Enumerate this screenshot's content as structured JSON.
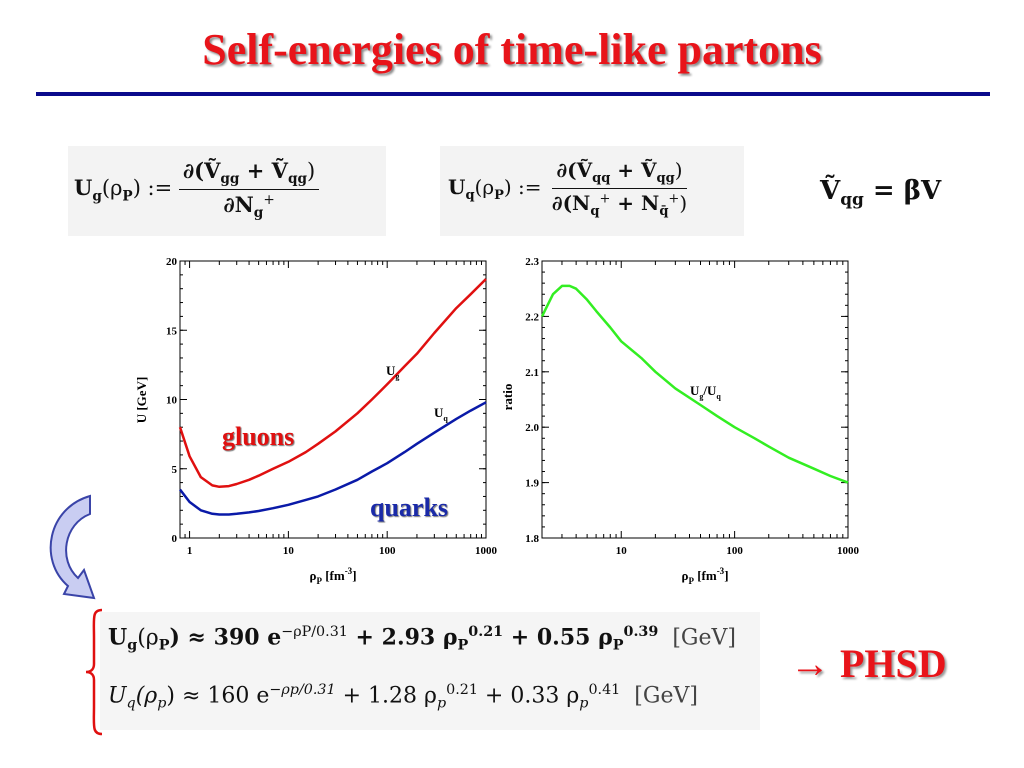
{
  "slide": {
    "title": "Self-energies of time-like partons",
    "result_label": "→ PHSD"
  },
  "equations": {
    "ug_def_lhs": "U",
    "ug_def_lhs_sub": "g",
    "ug_def_arg": "(ρ",
    "ug_def_arg_sub": "P",
    "ug_def_assign": ") :=",
    "ug_def_num": "∂(Ṽ",
    "ug_def_num_sub1": "gg",
    "ug_def_num_mid": " + Ṽ",
    "ug_def_num_sub2": "qg",
    "ug_def_num_end": ")",
    "ug_def_den": "∂N",
    "ug_def_den_sub": "g",
    "ug_def_den_sup": "+",
    "uq_def_lhs": "U",
    "uq_def_lhs_sub": "q",
    "uq_def_arg": "(ρ",
    "uq_def_arg_sub": "P",
    "uq_def_assign": ") :=",
    "uq_def_num": "∂(Ṽ",
    "uq_def_num_sub1": "qq",
    "uq_def_num_mid": " + Ṽ",
    "uq_def_num_sub2": "qg",
    "uq_def_num_end": ")",
    "uq_def_den": "∂(N",
    "uq_def_den_sub1": "q",
    "uq_def_den_sup1": "+",
    "uq_def_den_mid": " + N",
    "uq_def_den_sub2": "q̄",
    "uq_def_den_sup2": "+",
    "uq_def_den_end": ")",
    "vqg_lhs": "Ṽ",
    "vqg_sub": "qg",
    "vqg_rhs": " = βV",
    "fit_g": "U₉(ρₚ) ≈ 390 e^{−ρₚ/0.31} + 2.93 ρₚ^{0.21} + 0.55 ρₚ^{0.39} [GeV]",
    "fit_q": "U_q(ρ_p) ≈ 160 e^{−ρ_p/0.31} + 1.28 ρ_p^{0.21} + 0.33 ρ_p^{0.41} [GeV]",
    "fit_g_parts": [
      "U",
      "g",
      "(ρ",
      "P",
      ") ≈ 390 e",
      "−ρP/0.31",
      " + 2.93 ρ",
      "P",
      "0.21",
      " + 0.55 ρ",
      "P",
      "0.39",
      "[GeV]"
    ],
    "fit_q_parts": [
      "U",
      "q",
      "(ρ",
      "p",
      ") ≈ 160 e",
      "−ρp/0.31",
      " + 1.28 ρ",
      "p",
      "0.21",
      " + 0.33 ρ",
      "p",
      "0.41",
      "[GeV]"
    ]
  },
  "chart_data": [
    {
      "type": "line",
      "xscale": "log",
      "xlim": [
        0.8,
        1000
      ],
      "ylim": [
        0,
        20
      ],
      "xticks": [
        "1",
        "10",
        "100",
        "1000"
      ],
      "yticks": [
        "0",
        "5",
        "10",
        "15",
        "20"
      ],
      "xlabel": "ρP [fm-3]",
      "xlabel_main": "ρ",
      "xlabel_sub": "P",
      "xlabel_unit": " [fm",
      "xlabel_sup": "-3",
      "xlabel_end": "]",
      "ylabel": "U [GeV]",
      "grid": false,
      "series": [
        {
          "name": "Ug",
          "label_main": "U",
          "label_sub": "g",
          "color": "#e01010",
          "x": [
            0.8,
            1.0,
            1.3,
            1.7,
            2.0,
            2.5,
            3,
            4,
            5,
            7,
            10,
            15,
            20,
            30,
            50,
            70,
            100,
            150,
            200,
            300,
            500,
            700,
            1000
          ],
          "y": [
            8.0,
            5.9,
            4.4,
            3.8,
            3.7,
            3.75,
            3.9,
            4.2,
            4.5,
            5.0,
            5.5,
            6.2,
            6.8,
            7.7,
            9.0,
            10.0,
            11.1,
            12.4,
            13.3,
            14.8,
            16.6,
            17.6,
            18.7
          ]
        },
        {
          "name": "Uq",
          "label_main": "U",
          "label_sub": "q",
          "color": "#0a1aa8",
          "x": [
            0.8,
            1.0,
            1.3,
            1.7,
            2.0,
            2.5,
            3,
            4,
            5,
            7,
            10,
            15,
            20,
            30,
            50,
            70,
            100,
            150,
            200,
            300,
            500,
            700,
            1000
          ],
          "y": [
            3.5,
            2.6,
            2.0,
            1.75,
            1.7,
            1.7,
            1.75,
            1.85,
            1.95,
            2.15,
            2.4,
            2.75,
            3.0,
            3.5,
            4.2,
            4.8,
            5.4,
            6.2,
            6.8,
            7.6,
            8.6,
            9.2,
            9.8
          ]
        }
      ],
      "annotations": {
        "gluons": "gluons",
        "quarks": "quarks"
      }
    },
    {
      "type": "line",
      "xscale": "log",
      "xlim": [
        2,
        1000
      ],
      "ylim": [
        1.8,
        2.3
      ],
      "xticks": [
        "10",
        "100",
        "1000"
      ],
      "yticks": [
        "1.8",
        "1.9",
        "2.0",
        "2.1",
        "2.2",
        "2.3"
      ],
      "xlabel": "ρP [fm-3]",
      "xlabel_main": "ρ",
      "xlabel_sub": "P",
      "xlabel_unit": " [fm",
      "xlabel_sup": "-3",
      "xlabel_end": "]",
      "ylabel": "ratio",
      "grid": false,
      "series": [
        {
          "name": "Ug/Uq",
          "label_a": "U",
          "label_a_sub": "g",
          "label_mid": "/U",
          "label_b_sub": "q",
          "color": "#33ee22",
          "x": [
            2,
            2.5,
            3,
            3.5,
            4,
            5,
            6,
            8,
            10,
            15,
            20,
            30,
            50,
            70,
            100,
            150,
            200,
            300,
            500,
            700,
            1000
          ],
          "y": [
            2.2,
            2.24,
            2.255,
            2.255,
            2.25,
            2.23,
            2.21,
            2.18,
            2.155,
            2.125,
            2.1,
            2.07,
            2.04,
            2.02,
            2.0,
            1.98,
            1.965,
            1.945,
            1.925,
            1.912,
            1.9
          ]
        }
      ]
    }
  ]
}
